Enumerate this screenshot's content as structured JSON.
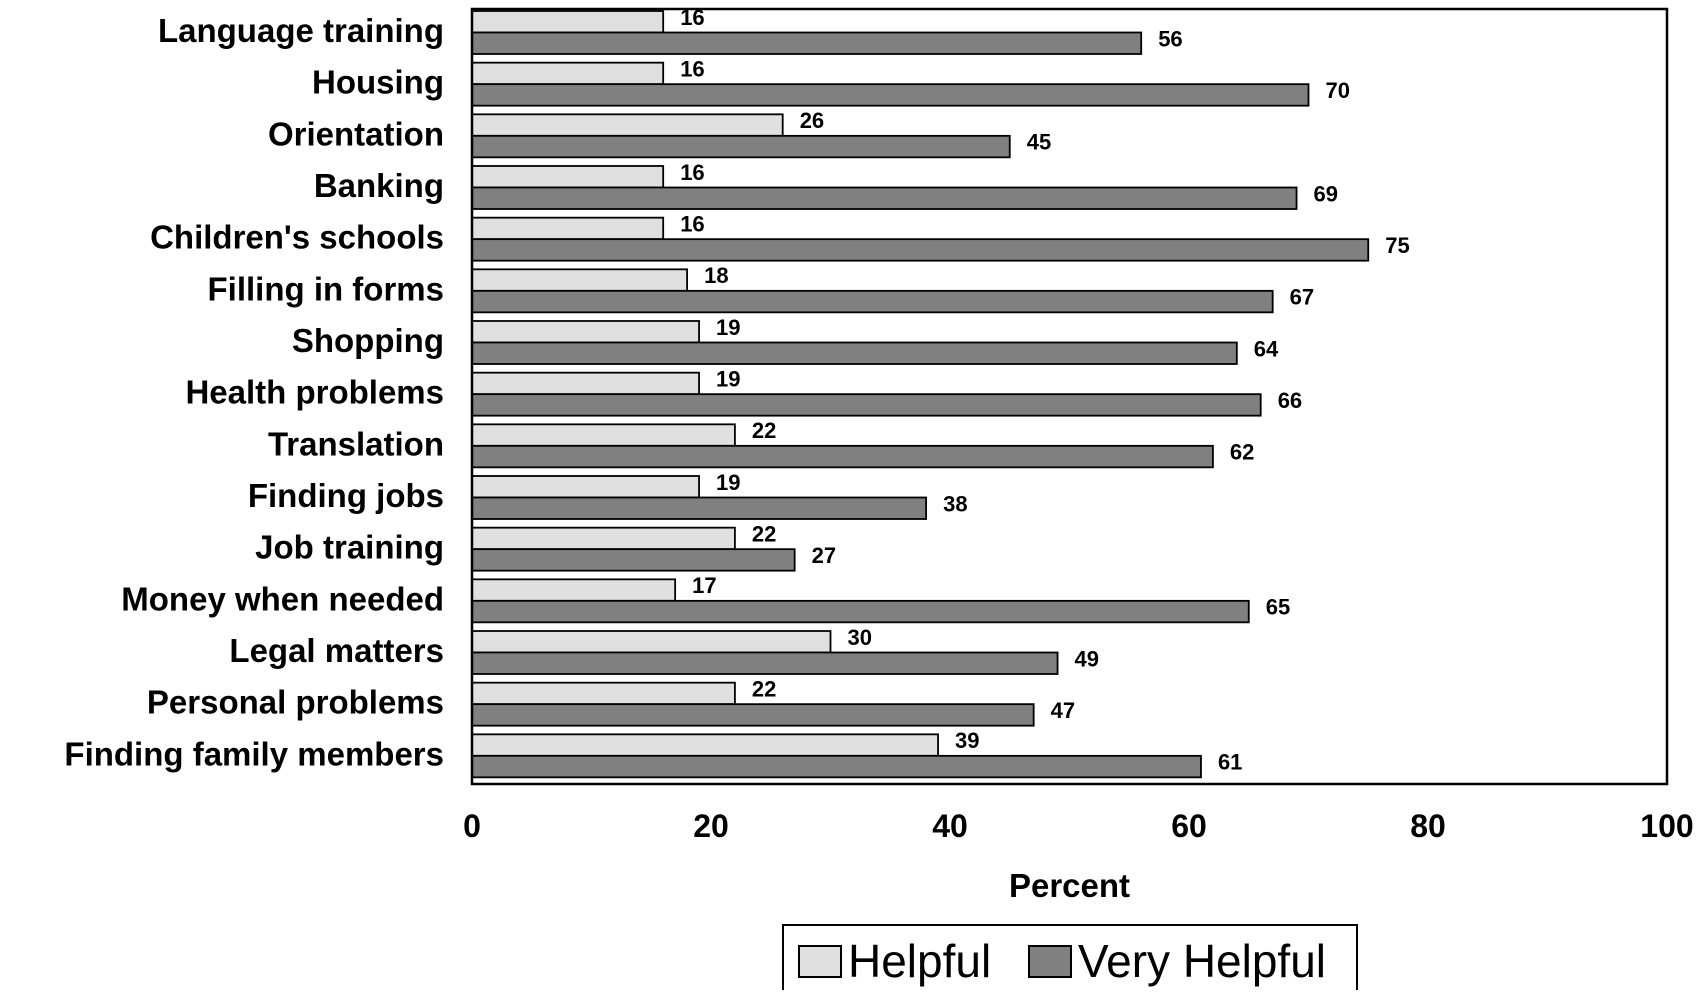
{
  "chart_data": {
    "type": "bar",
    "orientation": "horizontal",
    "categories": [
      "Language training",
      "Housing",
      "Orientation",
      "Banking",
      "Children's schools",
      "Filling in forms",
      "Shopping",
      "Health problems",
      "Translation",
      "Finding jobs",
      "Job training",
      "Money  when needed",
      "Legal matters",
      "Personal problems",
      "Finding family members"
    ],
    "series": [
      {
        "name": "Helpful",
        "color": "#e0e0e0",
        "values": [
          16,
          16,
          26,
          16,
          16,
          18,
          19,
          19,
          22,
          19,
          22,
          17,
          30,
          22,
          39
        ]
      },
      {
        "name": "Very Helpful",
        "color": "#808080",
        "values": [
          56,
          70,
          45,
          69,
          75,
          67,
          64,
          66,
          62,
          38,
          27,
          65,
          49,
          47,
          61
        ]
      }
    ],
    "title": "",
    "xlabel": "Percent",
    "ylabel": "",
    "xlim": [
      0,
      100
    ],
    "xticks": [
      "0",
      "20",
      "40",
      "60",
      "80",
      "100"
    ],
    "grid": false,
    "legend_position": "bottom-center",
    "data_labels": true
  }
}
